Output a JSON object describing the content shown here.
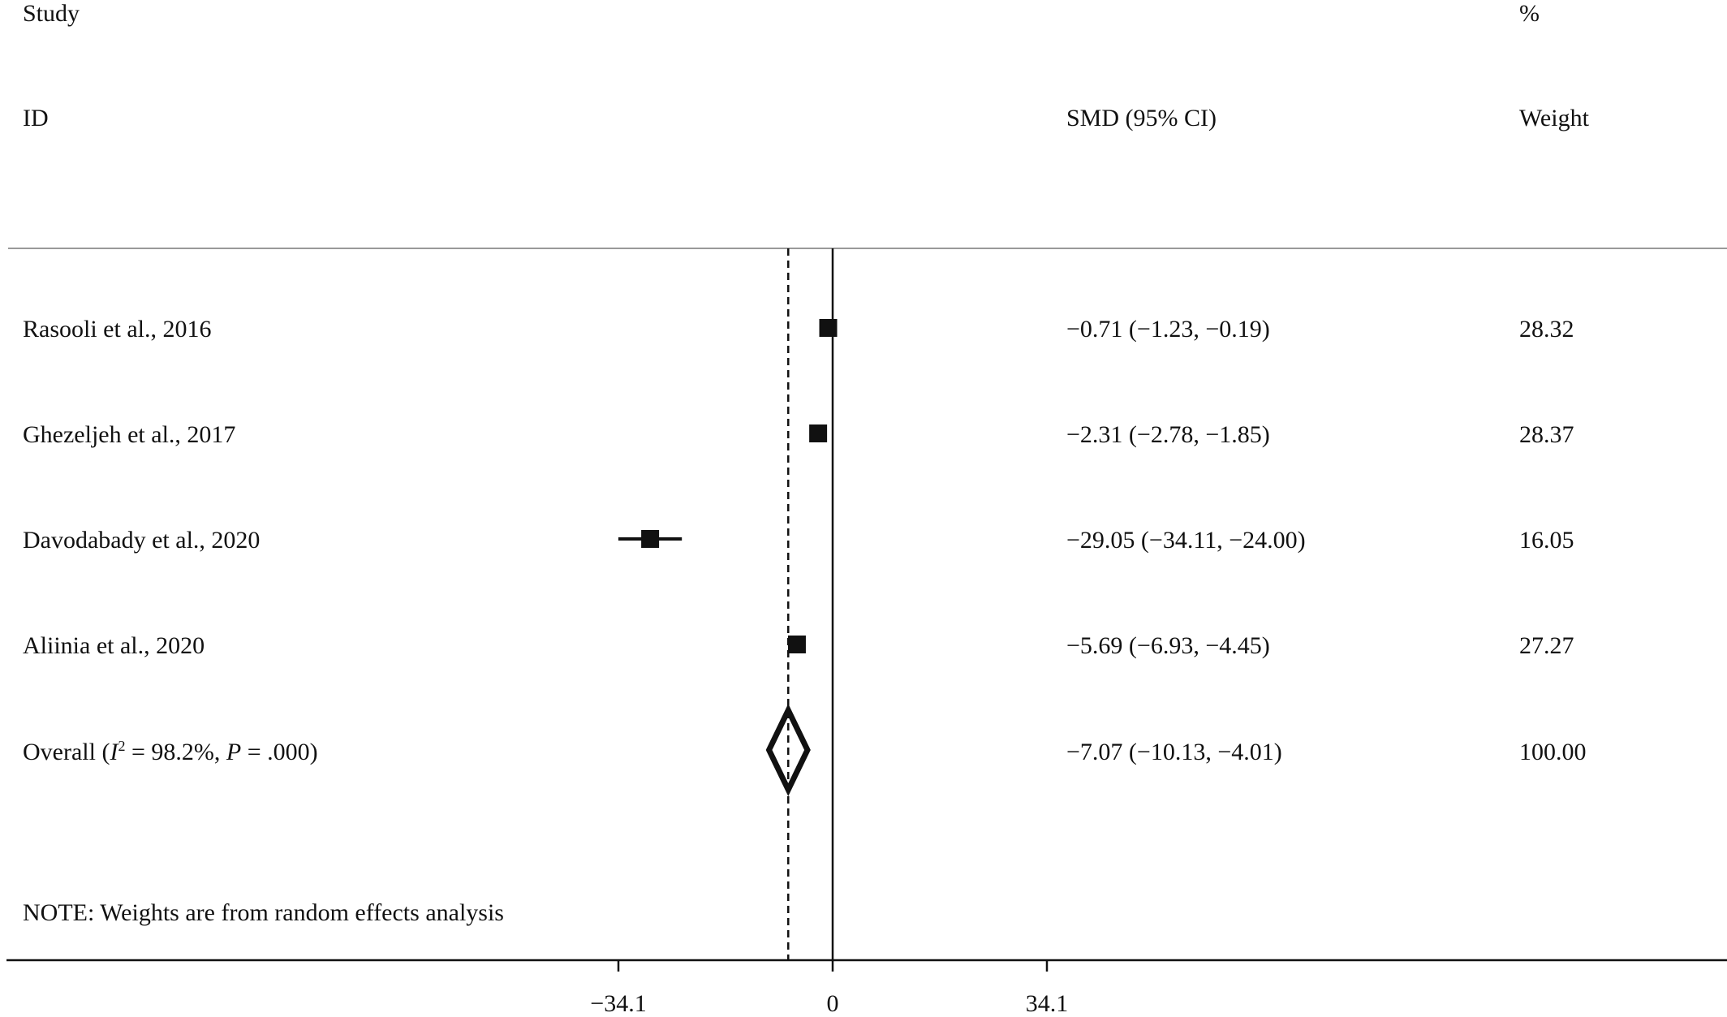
{
  "headers": {
    "study_line1": "Study",
    "study_line2": "ID",
    "effect": "SMD (95% CI)",
    "weight_line1": "%",
    "weight_line2": "Weight"
  },
  "chart_data": {
    "type": "forest",
    "effect_measure": "SMD (95% CI)",
    "x_ticks": [
      -34.1,
      0,
      34.1
    ],
    "x_tick_labels": [
      "−34.1",
      "0",
      "34.1"
    ],
    "null_line": 0,
    "overall_line": -7.07,
    "studies": [
      {
        "label": "Rasooli et al., 2016",
        "smd": -0.71,
        "ci": [
          -1.23,
          -0.19
        ],
        "text": "−0.71 (−1.23, −0.19)",
        "weight": 28.32,
        "weight_text": "28.32"
      },
      {
        "label": "Ghezeljeh et al., 2017",
        "smd": -2.31,
        "ci": [
          -2.78,
          -1.85
        ],
        "text": "−2.31 (−2.78, −1.85)",
        "weight": 28.37,
        "weight_text": "28.37"
      },
      {
        "label": "Davodabady et al., 2020",
        "smd": -29.05,
        "ci": [
          -34.11,
          -24.0
        ],
        "text": "−29.05 (−34.11, −24.00)",
        "weight": 16.05,
        "weight_text": "16.05"
      },
      {
        "label": "Aliinia et al., 2020",
        "smd": -5.69,
        "ci": [
          -6.93,
          -4.45
        ],
        "text": "−5.69 (−6.93, −4.45)",
        "weight": 27.27,
        "weight_text": "27.27"
      }
    ],
    "overall": {
      "label_prefix": "Overall  (",
      "i2_symbol": "I",
      "i2_sup": "2",
      "i2_value": " = 98.2%, ",
      "p_symbol": "P",
      "p_value": " = .000)",
      "smd": -7.07,
      "ci": [
        -10.13,
        -4.01
      ],
      "text": "−7.07 (−10.13, −4.01)",
      "weight": 100.0,
      "weight_text": "100.00"
    },
    "note": "NOTE: Weights are from random effects analysis"
  },
  "colors": {
    "ink": "#111111",
    "separator": "#999999"
  }
}
